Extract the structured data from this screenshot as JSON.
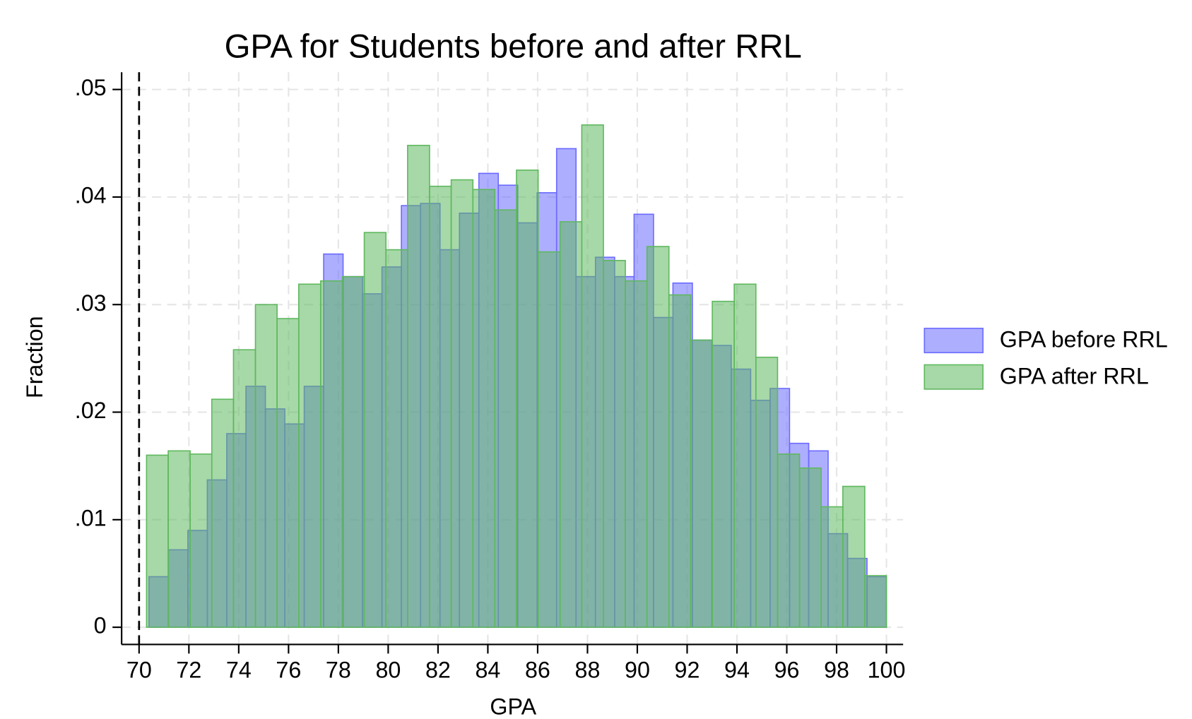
{
  "chart_data": {
    "type": "histogram",
    "title": "GPA for Students before and after RRL",
    "xlabel": "GPA",
    "ylabel": "Fraction",
    "xlim": [
      69.3,
      100.67
    ],
    "ylim": [
      -0.0016,
      0.0516
    ],
    "xticks": [
      70,
      72,
      74,
      76,
      78,
      80,
      82,
      84,
      86,
      88,
      90,
      92,
      94,
      96,
      98,
      100
    ],
    "yticks": [
      0,
      {
        "value": 0.01,
        "label": ".01"
      },
      {
        "value": 0.02,
        "label": ".02"
      },
      {
        "value": 0.03,
        "label": ".03"
      },
      {
        "value": 0.04,
        "label": ".04"
      },
      {
        "value": 0.05,
        "label": ".05"
      }
    ],
    "grid": true,
    "vline": 70,
    "legend": "right",
    "series": [
      {
        "name": "GPA before RRL",
        "color": "#6b6bff",
        "bins": [
          70.4,
          71.18,
          71.96,
          72.74,
          73.52,
          74.29,
          75.07,
          75.85,
          76.63,
          77.41,
          78.19,
          78.97,
          79.75,
          80.53,
          81.3,
          82.08,
          82.86,
          83.64,
          84.42,
          85.2,
          85.98,
          86.76,
          87.54,
          88.32,
          89.09,
          89.87,
          90.65,
          91.43,
          92.21,
          92.99,
          93.77,
          94.55,
          95.33,
          96.11,
          96.88,
          97.66,
          98.44,
          99.22,
          100.0
        ],
        "values": [
          0.0047,
          0.0072,
          0.009,
          0.0137,
          0.018,
          0.0224,
          0.0203,
          0.0189,
          0.0224,
          0.0347,
          0.0326,
          0.031,
          0.0335,
          0.0392,
          0.0394,
          0.0351,
          0.0385,
          0.0422,
          0.0411,
          0.0376,
          0.0404,
          0.0445,
          0.0326,
          0.0344,
          0.0326,
          0.0384,
          0.0288,
          0.032,
          0.0267,
          0.0262,
          0.024,
          0.0211,
          0.0222,
          0.0171,
          0.0164,
          0.0087,
          0.0064,
          0.0047
        ]
      },
      {
        "name": "GPA after RRL",
        "color": "#5fb85f",
        "bins": [
          70.3,
          71.17,
          72.05,
          72.92,
          73.79,
          74.67,
          75.54,
          76.41,
          77.29,
          78.16,
          79.04,
          79.91,
          80.78,
          81.66,
          82.53,
          83.4,
          84.28,
          85.15,
          86.02,
          86.9,
          87.77,
          88.64,
          89.52,
          90.39,
          91.27,
          92.14,
          93.01,
          93.89,
          94.76,
          95.63,
          96.51,
          97.38,
          98.25,
          99.13,
          100.0
        ],
        "values": [
          0.016,
          0.0164,
          0.0161,
          0.0212,
          0.0258,
          0.03,
          0.0287,
          0.0319,
          0.0322,
          0.0326,
          0.0367,
          0.0351,
          0.0448,
          0.041,
          0.0416,
          0.0407,
          0.0388,
          0.0425,
          0.0349,
          0.0377,
          0.0467,
          0.0341,
          0.0322,
          0.0354,
          0.0309,
          0.0267,
          0.0303,
          0.0319,
          0.0251,
          0.0161,
          0.0148,
          0.0112,
          0.0131,
          0.0048
        ]
      }
    ]
  }
}
